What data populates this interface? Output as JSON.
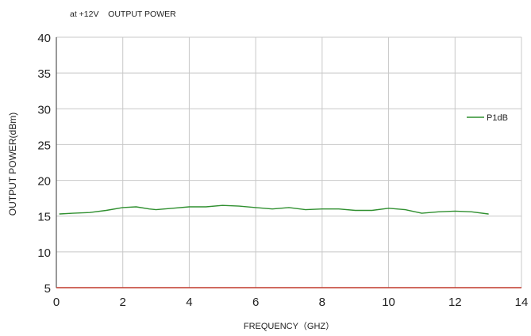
{
  "colors": {
    "series": "#2f8f2f",
    "baseline": "#c0392b",
    "grid": "#c8c8c8",
    "axis": "#555555",
    "text": "#222222"
  },
  "chart_data": {
    "type": "line",
    "title": "at +12V    OUTPUT POWER",
    "xlabel": "FREQUENCY（GHZ）",
    "ylabel": "OUTPUT POWER(dBm)",
    "xlim": [
      0,
      14
    ],
    "ylim": [
      5,
      40
    ],
    "xticks": [
      0,
      2,
      4,
      6,
      8,
      10,
      12,
      14
    ],
    "yticks": [
      5,
      10,
      15,
      20,
      25,
      30,
      35,
      40
    ],
    "grid": true,
    "legend": "right",
    "series": [
      {
        "name": "P1dB",
        "x": [
          0.1,
          0.5,
          1.0,
          1.5,
          2.0,
          2.4,
          2.8,
          3.0,
          3.5,
          4.0,
          4.5,
          5.0,
          5.5,
          6.0,
          6.5,
          7.0,
          7.5,
          8.0,
          8.5,
          9.0,
          9.5,
          10.0,
          10.5,
          11.0,
          11.5,
          12.0,
          12.5,
          13.0
        ],
        "y": [
          15.3,
          15.4,
          15.5,
          15.8,
          16.2,
          16.3,
          16.0,
          15.9,
          16.1,
          16.3,
          16.3,
          16.5,
          16.4,
          16.2,
          16.0,
          16.2,
          15.9,
          16.0,
          16.0,
          15.8,
          15.8,
          16.1,
          15.9,
          15.4,
          15.6,
          15.7,
          15.6,
          15.3
        ]
      }
    ]
  }
}
